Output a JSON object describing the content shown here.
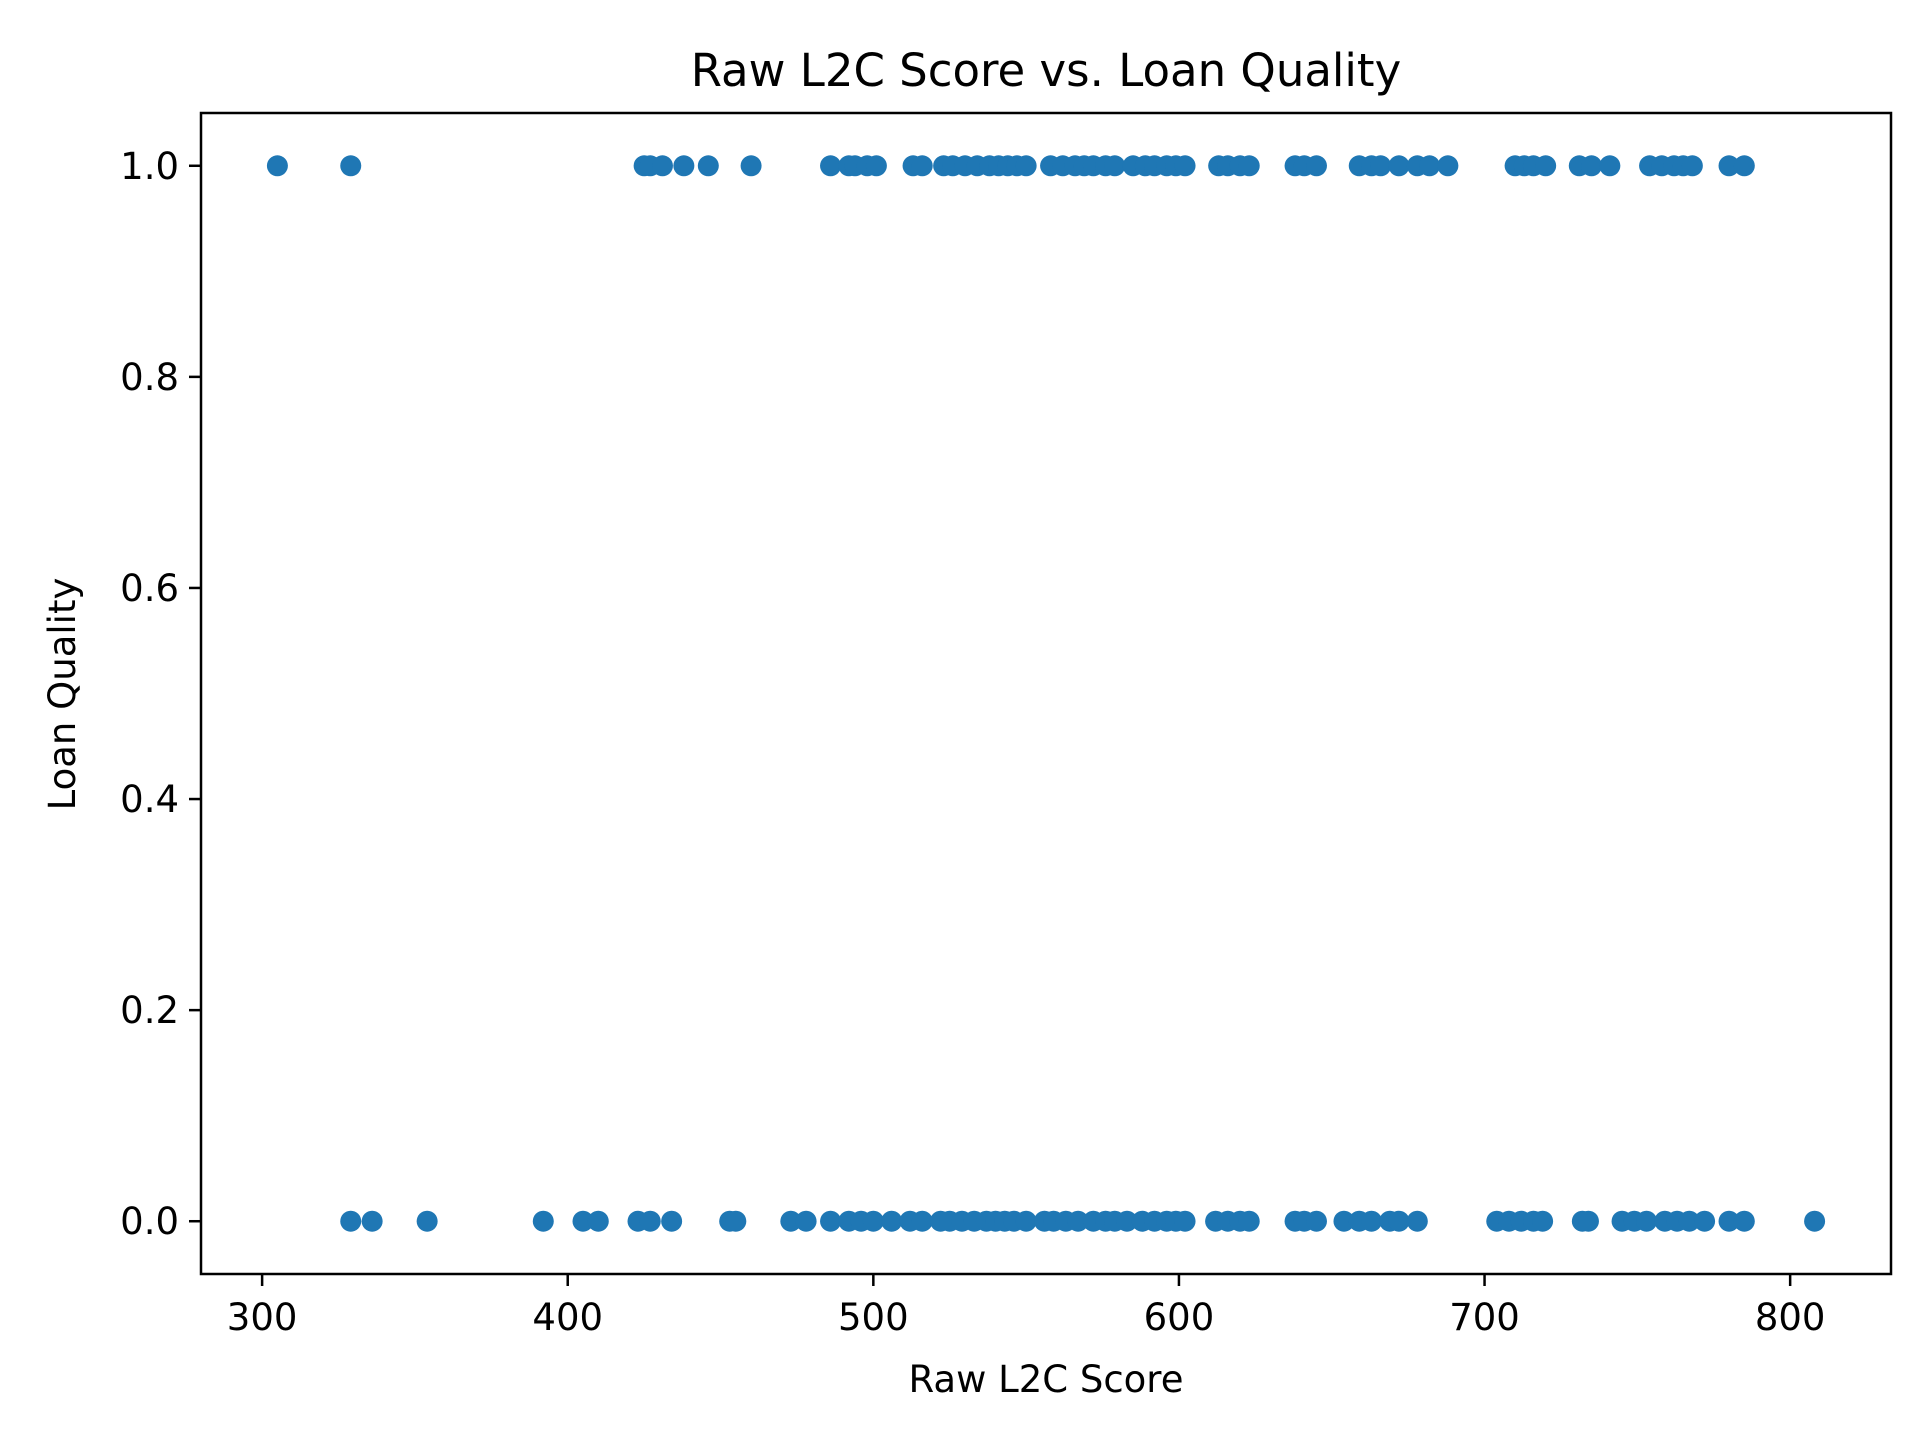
{
  "chart_data": {
    "type": "scatter",
    "title": "Raw L2C Score vs. Loan Quality",
    "xlabel": "Raw L2C Score",
    "ylabel": "Loan Quality",
    "xlim": [
      280,
      833
    ],
    "ylim": [
      -0.05,
      1.05
    ],
    "xticks": [
      300,
      400,
      500,
      600,
      700,
      800
    ],
    "yticks": [
      0.0,
      0.2,
      0.4,
      0.6,
      0.8,
      1.0
    ],
    "xtick_labels": [
      "300",
      "400",
      "500",
      "600",
      "700",
      "800"
    ],
    "ytick_labels": [
      "0.0",
      "0.2",
      "0.4",
      "0.6",
      "0.8",
      "1.0"
    ],
    "grid": false,
    "marker_color": "#1f77b4",
    "series": [
      {
        "points": [
          [
            305,
            1
          ],
          [
            329,
            1
          ],
          [
            425,
            1
          ],
          [
            427,
            1
          ],
          [
            431,
            1
          ],
          [
            438,
            1
          ],
          [
            446,
            1
          ],
          [
            460,
            1
          ],
          [
            486,
            1
          ],
          [
            492,
            1
          ],
          [
            494,
            1
          ],
          [
            498,
            1
          ],
          [
            501,
            1
          ],
          [
            513,
            1
          ],
          [
            516,
            1
          ],
          [
            523,
            1
          ],
          [
            526,
            1
          ],
          [
            530,
            1
          ],
          [
            534,
            1
          ],
          [
            538,
            1
          ],
          [
            541,
            1
          ],
          [
            544,
            1
          ],
          [
            547,
            1
          ],
          [
            550,
            1
          ],
          [
            558,
            1
          ],
          [
            562,
            1
          ],
          [
            566,
            1
          ],
          [
            569,
            1
          ],
          [
            572,
            1
          ],
          [
            576,
            1
          ],
          [
            579,
            1
          ],
          [
            585,
            1
          ],
          [
            589,
            1
          ],
          [
            592,
            1
          ],
          [
            596,
            1
          ],
          [
            599,
            1
          ],
          [
            602,
            1
          ],
          [
            613,
            1
          ],
          [
            616,
            1
          ],
          [
            620,
            1
          ],
          [
            623,
            1
          ],
          [
            638,
            1
          ],
          [
            641,
            1
          ],
          [
            645,
            1
          ],
          [
            659,
            1
          ],
          [
            663,
            1
          ],
          [
            666,
            1
          ],
          [
            672,
            1
          ],
          [
            678,
            1
          ],
          [
            682,
            1
          ],
          [
            688,
            1
          ],
          [
            710,
            1
          ],
          [
            713,
            1
          ],
          [
            716,
            1
          ],
          [
            720,
            1
          ],
          [
            731,
            1
          ],
          [
            735,
            1
          ],
          [
            741,
            1
          ],
          [
            754,
            1
          ],
          [
            758,
            1
          ],
          [
            762,
            1
          ],
          [
            765,
            1
          ],
          [
            768,
            1
          ],
          [
            780,
            1
          ],
          [
            785,
            1
          ],
          [
            329,
            0
          ],
          [
            336,
            0
          ],
          [
            354,
            0
          ],
          [
            392,
            0
          ],
          [
            405,
            0
          ],
          [
            410,
            0
          ],
          [
            423,
            0
          ],
          [
            427,
            0
          ],
          [
            434,
            0
          ],
          [
            453,
            0
          ],
          [
            455,
            0
          ],
          [
            473,
            0
          ],
          [
            478,
            0
          ],
          [
            486,
            0
          ],
          [
            492,
            0
          ],
          [
            496,
            0
          ],
          [
            500,
            0
          ],
          [
            506,
            0
          ],
          [
            512,
            0
          ],
          [
            516,
            0
          ],
          [
            522,
            0
          ],
          [
            525,
            0
          ],
          [
            529,
            0
          ],
          [
            533,
            0
          ],
          [
            537,
            0
          ],
          [
            540,
            0
          ],
          [
            543,
            0
          ],
          [
            546,
            0
          ],
          [
            550,
            0
          ],
          [
            556,
            0
          ],
          [
            559,
            0
          ],
          [
            563,
            0
          ],
          [
            567,
            0
          ],
          [
            572,
            0
          ],
          [
            576,
            0
          ],
          [
            579,
            0
          ],
          [
            583,
            0
          ],
          [
            588,
            0
          ],
          [
            592,
            0
          ],
          [
            596,
            0
          ],
          [
            599,
            0
          ],
          [
            602,
            0
          ],
          [
            612,
            0
          ],
          [
            616,
            0
          ],
          [
            620,
            0
          ],
          [
            623,
            0
          ],
          [
            638,
            0
          ],
          [
            641,
            0
          ],
          [
            645,
            0
          ],
          [
            654,
            0
          ],
          [
            659,
            0
          ],
          [
            663,
            0
          ],
          [
            669,
            0
          ],
          [
            672,
            0
          ],
          [
            678,
            0
          ],
          [
            704,
            0
          ],
          [
            708,
            0
          ],
          [
            712,
            0
          ],
          [
            716,
            0
          ],
          [
            719,
            0
          ],
          [
            732,
            0
          ],
          [
            734,
            0
          ],
          [
            745,
            0
          ],
          [
            749,
            0
          ],
          [
            753,
            0
          ],
          [
            759,
            0
          ],
          [
            763,
            0
          ],
          [
            767,
            0
          ],
          [
            772,
            0
          ],
          [
            780,
            0
          ],
          [
            785,
            0
          ],
          [
            808,
            0
          ]
        ]
      }
    ]
  }
}
